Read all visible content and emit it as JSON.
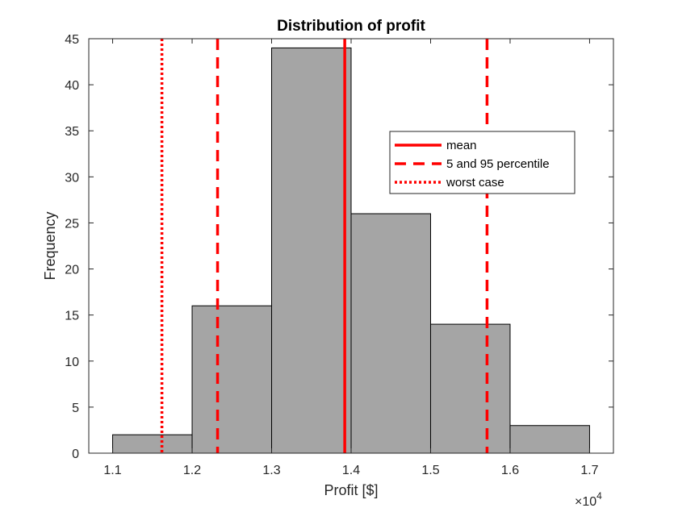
{
  "chart_data": {
    "type": "bar",
    "subtype": "histogram",
    "title": "Distribution of profit",
    "xlabel": "Profit [$]",
    "ylabel": "Frequency",
    "x_exponent_base": "×10",
    "x_exponent_power": "4",
    "xlim": [
      1.07,
      1.73
    ],
    "ylim": [
      0,
      45
    ],
    "x_ticks": [
      1.1,
      1.2,
      1.3,
      1.4,
      1.5,
      1.6,
      1.7
    ],
    "x_tick_labels": [
      "1.1",
      "1.2",
      "1.3",
      "1.4",
      "1.5",
      "1.6",
      "1.7"
    ],
    "y_ticks": [
      0,
      5,
      10,
      15,
      20,
      25,
      30,
      35,
      40,
      45
    ],
    "y_tick_labels": [
      "0",
      "5",
      "10",
      "15",
      "20",
      "25",
      "30",
      "35",
      "40",
      "45"
    ],
    "bins": [
      {
        "start": 1.1,
        "end": 1.2,
        "count": 2
      },
      {
        "start": 1.2,
        "end": 1.3,
        "count": 16
      },
      {
        "start": 1.3,
        "end": 1.4,
        "count": 44
      },
      {
        "start": 1.4,
        "end": 1.5,
        "count": 26
      },
      {
        "start": 1.5,
        "end": 1.6,
        "count": 14
      },
      {
        "start": 1.6,
        "end": 1.7,
        "count": 3
      }
    ],
    "vertical_lines": [
      {
        "value": 1.392,
        "style": "solid",
        "legend_index": 0
      },
      {
        "value": 1.232,
        "style": "dashed",
        "legend_index": 1
      },
      {
        "value": 1.571,
        "style": "dashed",
        "legend_index": 1
      },
      {
        "value": 1.162,
        "style": "dotted",
        "legend_index": 2
      }
    ],
    "legend": {
      "placement": "inside-right",
      "entries": [
        {
          "label": "mean",
          "style": "solid"
        },
        {
          "label": "5 and 95 percentile",
          "style": "dashed"
        },
        {
          "label": "worst case",
          "style": "dotted"
        }
      ]
    },
    "grid": false,
    "colors": {
      "bar_fill": "#a5a5a5",
      "bar_edge": "#000000",
      "line": "#ff0000",
      "axis": "#262626"
    }
  }
}
